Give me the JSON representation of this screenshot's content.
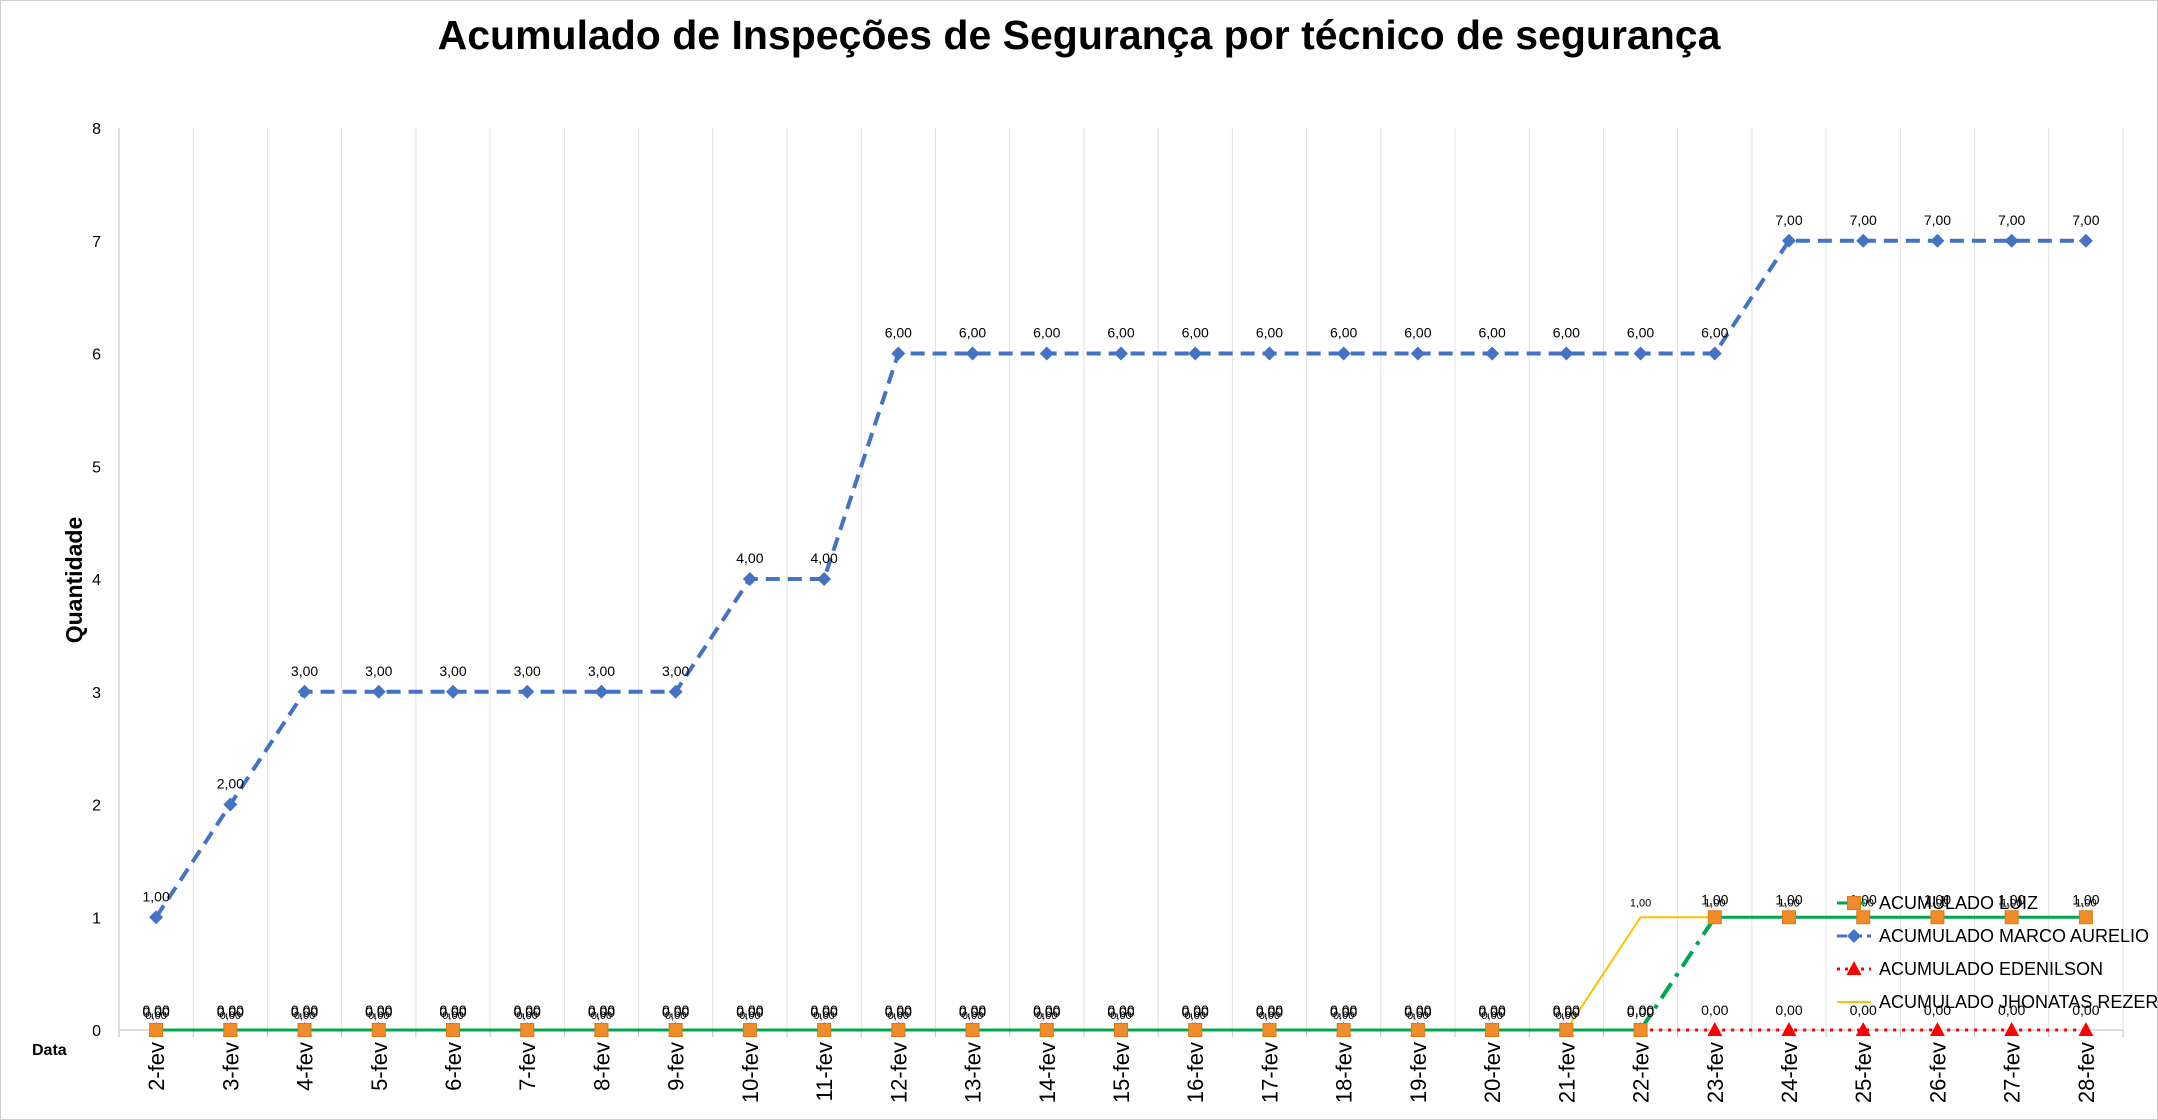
{
  "chart_data": {
    "type": "line",
    "title": "Acumulado de Inspeções de Segurança por técnico de segurança",
    "xlabel": "Data",
    "ylabel": "Quantidade",
    "categories": [
      "2-fev",
      "3-fev",
      "4-fev",
      "5-fev",
      "6-fev",
      "7-fev",
      "8-fev",
      "9-fev",
      "10-fev",
      "11-fev",
      "12-fev",
      "13-fev",
      "14-fev",
      "15-fev",
      "16-fev",
      "17-fev",
      "18-fev",
      "19-fev",
      "20-fev",
      "21-fev",
      "22-fev",
      "23-fev",
      "24-fev",
      "25-fev",
      "26-fev",
      "27-fev",
      "28-fev"
    ],
    "yticks": [
      "0",
      "1",
      "2",
      "3",
      "4",
      "5",
      "6",
      "7",
      "8"
    ],
    "ylim": [
      0,
      8
    ],
    "grid": "vertical",
    "legend_position": "bottom-right",
    "series": [
      {
        "name": "ACUMULADO LUIZ",
        "color": "#00a651",
        "marker": "square",
        "marker_color": "#f28c28",
        "values": [
          0,
          0,
          0,
          0,
          0,
          0,
          0,
          0,
          0,
          0,
          0,
          0,
          0,
          0,
          0,
          0,
          0,
          0,
          0,
          0,
          0,
          1,
          1,
          1,
          1,
          1,
          1
        ],
        "labels": [
          "0,00",
          "0,00",
          "0,00",
          "0,00",
          "0,00",
          "0,00",
          "0,00",
          "0,00",
          "0,00",
          "0,00",
          "0,00",
          "0,00",
          "0,00",
          "0,00",
          "0,00",
          "0,00",
          "0,00",
          "0,00",
          "0,00",
          "0,00",
          "0,00",
          "1,00",
          "1,00",
          "1,00",
          "1,00",
          "1,00",
          "1,00"
        ]
      },
      {
        "name": "ACUMULADO MARCO AURELIO",
        "color": "#4472c4",
        "marker": "diamond",
        "values": [
          1,
          2,
          3,
          3,
          3,
          3,
          3,
          3,
          4,
          4,
          6,
          6,
          6,
          6,
          6,
          6,
          6,
          6,
          6,
          6,
          6,
          6,
          7,
          7,
          7,
          7,
          7
        ],
        "labels": [
          "1,00",
          "2,00",
          "3,00",
          "3,00",
          "3,00",
          "3,00",
          "3,00",
          "3,00",
          "4,00",
          "4,00",
          "6,00",
          "6,00",
          "6,00",
          "6,00",
          "6,00",
          "6,00",
          "6,00",
          "6,00",
          "6,00",
          "6,00",
          "6,00",
          "6,00",
          "7,00",
          "7,00",
          "7,00",
          "7,00",
          "7,00"
        ]
      },
      {
        "name": "ACUMULADO EDENILSON",
        "color": "#ff0000",
        "marker": "triangle",
        "values": [
          0,
          0,
          0,
          0,
          0,
          0,
          0,
          0,
          0,
          0,
          0,
          0,
          0,
          0,
          0,
          0,
          0,
          0,
          0,
          0,
          0,
          0,
          0,
          0,
          0,
          0,
          0
        ],
        "labels": [
          "0,00",
          "0,00",
          "0,00",
          "0,00",
          "0,00",
          "0,00",
          "0,00",
          "0,00",
          "0,00",
          "0,00",
          "0,00",
          "0,00",
          "0,00",
          "0,00",
          "0,00",
          "0,00",
          "0,00",
          "0,00",
          "0,00",
          "0,00",
          "0,00",
          "0,00",
          "0,00",
          "0,00",
          "0,00",
          "0,00",
          "0,00"
        ]
      },
      {
        "name": "ACUMULADO JHONATAS REZER",
        "color": "#ffc000",
        "marker": "none",
        "values": [
          0,
          0,
          0,
          0,
          0,
          0,
          0,
          0,
          0,
          0,
          0,
          0,
          0,
          0,
          0,
          0,
          0,
          0,
          0,
          0,
          1,
          1,
          1,
          1,
          1,
          1,
          1
        ],
        "labels": [
          "0,00",
          "0,00",
          "0,00",
          "0,00",
          "0,00",
          "0,00",
          "0,00",
          "0,00",
          "0,00",
          "0,00",
          "0,00",
          "0,00",
          "0,00",
          "0,00",
          "0,00",
          "0,00",
          "0,00",
          "0,00",
          "0,00",
          "0,00",
          "1,00",
          "1,00",
          "1,00",
          "1,00",
          "1,00",
          "1,00",
          "1,00"
        ]
      }
    ]
  }
}
